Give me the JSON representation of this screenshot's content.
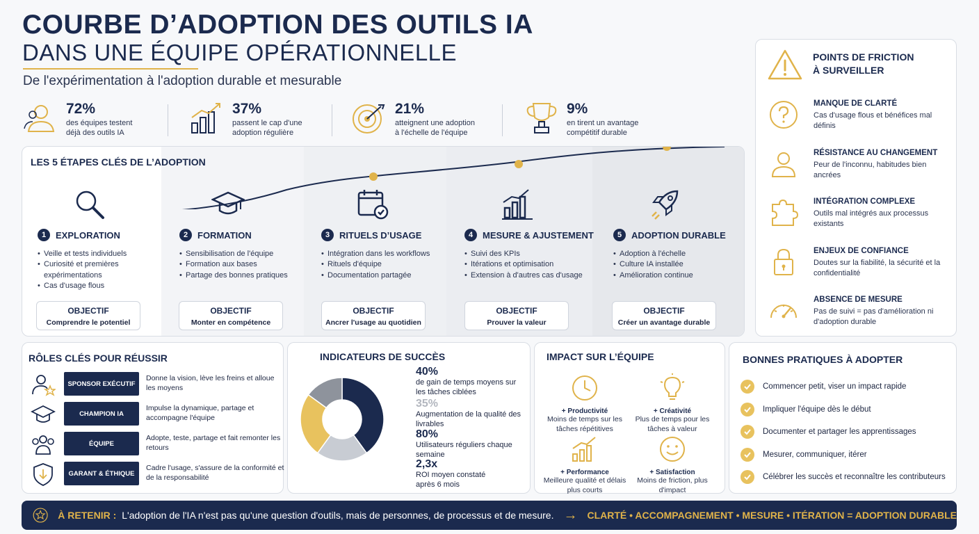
{
  "header": {
    "title_line1": "COURBE D’ADOPTION DES OUTILS IA",
    "title_line2": "DANS UNE ÉQUIPE OPÉRATIONNELLE",
    "subtitle": "De l'expérimentation à l'adoption durable et mesurable"
  },
  "stats": [
    {
      "value": "72%",
      "text": "des équipes testent déjà des outils IA",
      "icon": "users-icon"
    },
    {
      "value": "37%",
      "text": "passent le cap d'une adoption régulière",
      "icon": "bar-growth-icon"
    },
    {
      "value": "21%",
      "text": "atteignent une adoption à l'échelle de l'équipe",
      "icon": "target-icon"
    },
    {
      "value": "9%",
      "text": "en tirent un avantage compétitif durable",
      "icon": "trophy-icon"
    }
  ],
  "steps": {
    "title": "LES 5 ÉTAPES CLÉS DE L’ADOPTION",
    "items": [
      {
        "num": "1",
        "title": "EXPLORATION",
        "icon": "magnifier-icon",
        "bullets": [
          "Veille et tests individuels",
          "Curiosité et premières expérimentations",
          "Cas d'usage flous"
        ],
        "objective_label": "OBJECTIF",
        "objective": "Comprendre le potentiel"
      },
      {
        "num": "2",
        "title": "FORMATION",
        "icon": "graduation-cap-icon",
        "bullets": [
          "Sensibilisation de l'équipe",
          "Formation aux bases",
          "Partage des bonnes pratiques"
        ],
        "objective_label": "OBJECTIF",
        "objective": "Monter en compétence"
      },
      {
        "num": "3",
        "title": "RITUELS D’USAGE",
        "icon": "calendar-check-icon",
        "bullets": [
          "Intégration dans les workflows",
          "Rituels d'équipe",
          "Documentation partagée"
        ],
        "objective_label": "OBJECTIF",
        "objective": "Ancrer l'usage au quotidien"
      },
      {
        "num": "4",
        "title": "MESURE & AJUSTEMENT",
        "icon": "chart-icon",
        "bullets": [
          "Suivi des KPIs",
          "Itérations et optimisation",
          "Extension à d'autres cas d'usage"
        ],
        "objective_label": "OBJECTIF",
        "objective": "Prouver la valeur"
      },
      {
        "num": "5",
        "title": "ADOPTION DURABLE",
        "icon": "rocket-icon",
        "bullets": [
          "Adoption à l'échelle",
          "Culture IA installée",
          "Amélioration continue"
        ],
        "objective_label": "OBJECTIF",
        "objective": "Créer un avantage durable"
      }
    ]
  },
  "friction": {
    "title_line1": "POINTS DE FRICTION",
    "title_line2": "À SURVEILLER",
    "items": [
      {
        "title": "MANQUE DE CLARTÉ",
        "text": "Cas d'usage flous et bénéfices mal définis",
        "icon": "question-icon"
      },
      {
        "title": "RÉSISTANCE AU CHANGEMENT",
        "text": "Peur de l'inconnu, habitudes bien ancrées",
        "icon": "person-icon"
      },
      {
        "title": "INTÉGRATION COMPLEXE",
        "text": "Outils mal intégrés aux processus existants",
        "icon": "puzzle-icon"
      },
      {
        "title": "ENJEUX DE CONFIANCE",
        "text": "Doutes sur la fiabilité, la sécurité et la confidentialité",
        "icon": "lock-icon"
      },
      {
        "title": "ABSENCE DE MESURE",
        "text": "Pas de suivi = pas d'amélioration ni d'adoption durable",
        "icon": "gauge-icon"
      }
    ]
  },
  "roles": {
    "title": "RÔLES CLÉS POUR RÉUSSIR",
    "items": [
      {
        "label": "SPONSOR EXÉCUTIF",
        "text": "Donne la vision, lève les freins et alloue les moyens",
        "icon": "sponsor-icon"
      },
      {
        "label": "CHAMPION IA",
        "text": "Impulse la dynamique, partage et accompagne l'équipe",
        "icon": "champion-cap-icon"
      },
      {
        "label": "ÉQUIPE",
        "text": "Adopte, teste, partage et fait remonter les retours",
        "icon": "team-icon"
      },
      {
        "label": "GARANT & ÉTHIQUE",
        "text": "Cadre l'usage, s'assure de la conformité et de la responsabilité",
        "icon": "shield-icon"
      }
    ]
  },
  "indicators": {
    "title": "INDICATEURS DE SUCCÈS",
    "items": [
      {
        "value": "40%",
        "text": "de gain de temps moyens sur les tâches ciblées"
      },
      {
        "value": "35%",
        "text": "Augmentation de la qualité des livrables"
      },
      {
        "value": "80%",
        "text": "Utilisateurs réguliers chaque semaine"
      },
      {
        "value": "2,3x",
        "text": "ROI moyen constaté après 6 mois"
      }
    ]
  },
  "chart_data": {
    "type": "pie",
    "segments": [
      {
        "value": 40,
        "color": "#1b2a4e"
      },
      {
        "value": 20,
        "color": "#c8ccd3"
      },
      {
        "value": 25,
        "color": "#e8c25e"
      },
      {
        "value": 15,
        "color": "#8e939c"
      }
    ]
  },
  "impact": {
    "title": "IMPACT SUR L’ÉQUIPE",
    "items": [
      {
        "title": "+ Productivité",
        "text": "Moins de temps sur les tâches répétitives",
        "icon": "clock-icon"
      },
      {
        "title": "+ Créativité",
        "text": "Plus de temps pour les tâches à valeur",
        "icon": "lightbulb-icon"
      },
      {
        "title": "+ Performance",
        "text": "Meilleure qualité et délais plus courts",
        "icon": "growth-chart-icon"
      },
      {
        "title": "+ Satisfaction",
        "text": "Moins de friction, plus d'impact",
        "icon": "smile-icon"
      }
    ]
  },
  "practices": {
    "title": "BONNES PRATIQUES À ADOPTER",
    "items": [
      "Commencer petit, viser un impact rapide",
      "Impliquer l'équipe dès le début",
      "Documenter et partager les apprentissages",
      "Mesurer, communiquer, itérer",
      "Célébrer les succès et reconnaître les contributeurs"
    ]
  },
  "banner": {
    "key": "À RETENIR :",
    "text": "L'adoption de l'IA n'est pas qu'une question d'outils, mais de personnes, de processus et de mesure.",
    "arrow": "→",
    "motto": "CLARTÉ • ACCOMPAGNEMENT • MESURE • ITÉRATION = ADOPTION DURABLE"
  },
  "colors": {
    "navy": "#1b2a4e",
    "gold": "#e0b34a",
    "light_gold": "#e8c25e"
  }
}
